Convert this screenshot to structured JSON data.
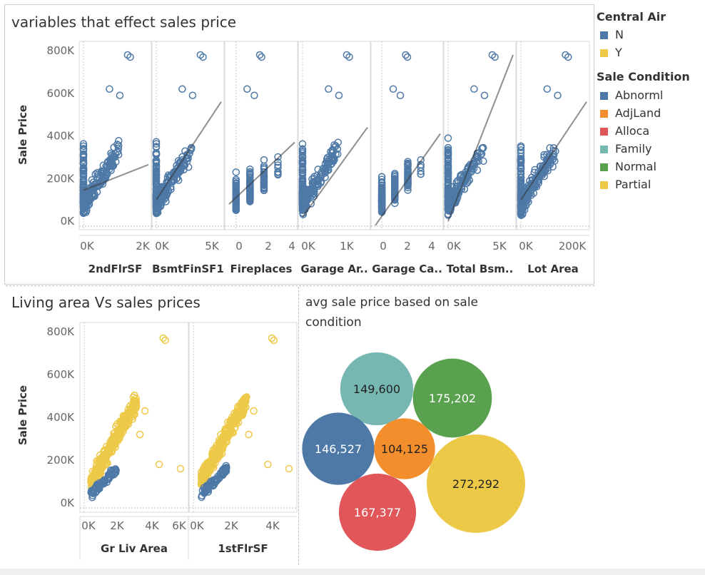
{
  "colors": {
    "N": "#4e79a7",
    "Y": "#edc948",
    "Abnorml": "#4e79a7",
    "AdjLand": "#f28e2b",
    "Alloca": "#e15759",
    "Family": "#76b7b2",
    "Normal": "#59a14f",
    "Partial": "#edc948"
  },
  "legend": {
    "central_air": {
      "title": "Central Air",
      "items": [
        "N",
        "Y"
      ]
    },
    "sale_condition": {
      "title": "Sale Condition",
      "items": [
        "Abnorml",
        "AdjLand",
        "Alloca",
        "Family",
        "Normal",
        "Partial"
      ]
    }
  },
  "chart_data": [
    {
      "type": "scatter",
      "title": "variables that effect sales price",
      "ylabel": "Sale Price",
      "ylim": [
        0,
        800000
      ],
      "yticks": [
        "800K",
        "600K",
        "400K",
        "200K",
        "0K"
      ],
      "series": [
        {
          "name": "N",
          "color": "#4e79a7"
        }
      ],
      "panels": [
        {
          "xlabel": "2ndFlrSF",
          "xticks": [
            "0K",
            "2K"
          ],
          "xlim": [
            0,
            2100
          ],
          "trend": [
            [
              0,
              145000
            ],
            [
              2100,
              265000
            ]
          ]
        },
        {
          "xlabel": "BsmtFinSF1",
          "xticks": [
            "0K",
            "5K"
          ],
          "xlim": [
            0,
            5800
          ],
          "trend": [
            [
              0,
              100000
            ],
            [
              5800,
              560000
            ]
          ]
        },
        {
          "xlabel": "Fireplaces",
          "xticks": [
            "0",
            "2",
            "4"
          ],
          "xlim": [
            -0.5,
            4.2
          ],
          "trend": [
            [
              -0.5,
              80000
            ],
            [
              4.2,
              370000
            ]
          ]
        },
        {
          "xlabel": "Garage Ar..",
          "xticks": [
            "0K",
            "1K"
          ],
          "xlim": [
            0,
            1450
          ],
          "trend": [
            [
              0,
              20000
            ],
            [
              1450,
              440000
            ]
          ]
        },
        {
          "xlabel": "Garage Ca..",
          "xticks": [
            "0",
            "2",
            "4"
          ],
          "xlim": [
            -0.5,
            4.5
          ],
          "trend": [
            [
              -0.5,
              -20000
            ],
            [
              4.5,
              410000
            ]
          ]
        },
        {
          "xlabel": "Total Bsm..",
          "xticks": [
            "0K",
            "5K"
          ],
          "xlim": [
            0,
            6300
          ],
          "trend": [
            [
              0,
              0
            ],
            [
              6300,
              780000
            ]
          ]
        },
        {
          "xlabel": "Lot Area",
          "xticks": [
            "0K",
            "200K"
          ],
          "xlim": [
            0,
            230000
          ],
          "trend": [
            [
              0,
              100000
            ],
            [
              230000,
              560000
            ]
          ]
        }
      ]
    },
    {
      "type": "scatter",
      "title": "Living area Vs sales prices",
      "ylabel": "Sale Price",
      "ylim": [
        0,
        800000
      ],
      "yticks": [
        "800K",
        "600K",
        "400K",
        "200K",
        "0K"
      ],
      "series": [
        {
          "name": "N",
          "color": "#4e79a7"
        },
        {
          "name": "Y",
          "color": "#edc948"
        }
      ],
      "panels": [
        {
          "xlabel": "Gr Liv Area",
          "xticks": [
            "0K",
            "2K",
            "4K",
            "6K"
          ],
          "xlim": [
            0,
            6000
          ]
        },
        {
          "xlabel": "1stFlrSF",
          "xticks": [
            "0K",
            "2K",
            "4K"
          ],
          "xlim": [
            0,
            5100
          ]
        }
      ]
    },
    {
      "type": "bubble",
      "title": "avg sale price based  on sale condition",
      "bubbles": [
        {
          "label": "Family",
          "value": 149600,
          "text": "149,600",
          "color": "#76b7b2"
        },
        {
          "label": "Normal",
          "value": 175202,
          "text": "175,202",
          "color": "#59a14f"
        },
        {
          "label": "Abnorml",
          "value": 146527,
          "text": "146,527",
          "color": "#4e79a7"
        },
        {
          "label": "AdjLand",
          "value": 104125,
          "text": "104,125",
          "color": "#f28e2b"
        },
        {
          "label": "Partial",
          "value": 272292,
          "text": "272,292",
          "color": "#edc948"
        },
        {
          "label": "Alloca",
          "value": 167377,
          "text": "167,377",
          "color": "#e15759"
        }
      ]
    }
  ]
}
